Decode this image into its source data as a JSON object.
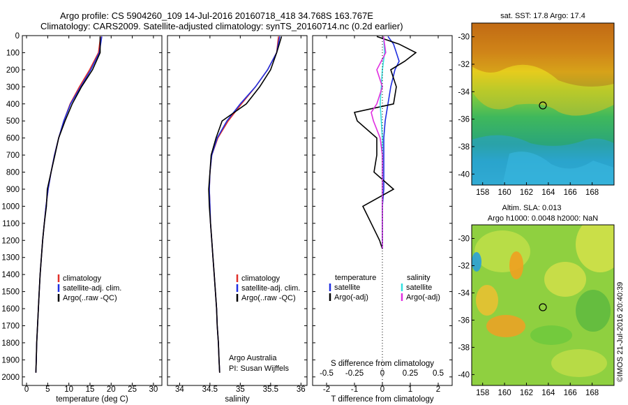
{
  "title_line1": "Argo profile: CS 5904260_109 14-Jul-2016 20160718_418 34.768S 163.767E",
  "title_line2": "Climatology: CARS2009. Satellite-adjusted climatology: synTS_20160714.nc (0.2d earlier)",
  "sst_title": "sat. SST: 17.8 Argo: 17.4",
  "sla_title1": "Altim. SLA: 0.013",
  "sla_title2": "Argo h1000: 0.0048 h2000: NaN",
  "credit": "©IMOS 21-Jul-2016 20:40:39",
  "annotation_argo": "Argo Australia",
  "annotation_pi": "PI: Susan Wijffels",
  "map_lat_ticks": [
    "-30",
    "-32",
    "-34",
    "-36",
    "-38",
    "-40"
  ],
  "map_lon_ticks": [
    "158",
    "160",
    "162",
    "164",
    "166",
    "168"
  ],
  "colors": {
    "climatology": "#e0302a",
    "satellite": "#1f2fe0",
    "argo": "#000000",
    "sat_salinity": "#35e0e0",
    "argo_salinity": "#e030e0"
  },
  "chart_data": [
    {
      "type": "line",
      "xlabel": "temperature (deg C)",
      "ylim": [
        2050,
        0
      ],
      "xlim": [
        -1,
        32
      ],
      "x_ticks": [
        "0",
        "5",
        "10",
        "15",
        "20",
        "25",
        "30"
      ],
      "y_ticks": [
        "0",
        "100",
        "200",
        "300",
        "400",
        "500",
        "600",
        "700",
        "800",
        "900",
        "1000",
        "1100",
        "1200",
        "1300",
        "1400",
        "1500",
        "1600",
        "1700",
        "1800",
        "1900",
        "2000"
      ],
      "legend": [
        "climatology",
        "satellite-adj. clim.",
        "Argo(..raw -QC)"
      ],
      "series": [
        {
          "name": "climatology",
          "depth": [
            5,
            100,
            200,
            300,
            400,
            500,
            600,
            700,
            800,
            900,
            1000,
            1100,
            1200,
            1300,
            1400,
            1500,
            1600,
            1700,
            1800,
            1900,
            1975
          ],
          "values": [
            17.5,
            17.0,
            14.9,
            12.5,
            10.3,
            8.8,
            7.6,
            6.6,
            5.8,
            5.1,
            4.6,
            4.2,
            3.8,
            3.5,
            3.2,
            3.0,
            2.8,
            2.6,
            2.4,
            2.3,
            2.2
          ]
        },
        {
          "name": "satellite-adj. clim.",
          "depth": [
            5,
            100,
            200,
            300,
            400,
            500,
            600,
            700,
            800,
            900,
            1000,
            1100,
            1200,
            1300,
            1400,
            1500,
            1600,
            1700,
            1800,
            1900,
            1975
          ],
          "values": [
            17.8,
            17.2,
            15.2,
            12.8,
            10.4,
            8.8,
            7.6,
            6.6,
            5.8,
            5.1,
            4.6,
            4.2,
            3.8,
            3.5,
            3.2,
            3.0,
            2.8,
            2.6,
            2.4,
            2.3,
            2.2
          ]
        },
        {
          "name": "Argo(..raw -QC)",
          "depth": [
            5,
            100,
            200,
            300,
            400,
            500,
            600,
            700,
            800,
            900,
            1000,
            1100,
            1200,
            1300,
            1400,
            1500,
            1600,
            1700,
            1800,
            1900,
            1975
          ],
          "values": [
            17.4,
            17.4,
            15.6,
            13.0,
            10.8,
            9.1,
            7.6,
            6.7,
            5.8,
            4.9,
            4.7,
            4.2,
            3.8,
            3.5,
            3.2,
            3.0,
            2.8,
            2.6,
            2.4,
            2.3,
            2.2
          ]
        }
      ]
    },
    {
      "type": "line",
      "xlabel": "salinity",
      "ylim": [
        2050,
        0
      ],
      "xlim": [
        33.8,
        36.1
      ],
      "x_ticks": [
        "34",
        "34.5",
        "35",
        "35.5",
        "36"
      ],
      "legend": [
        "climatology",
        "satellite-adj. clim.",
        "Argo(..raw -QC)"
      ],
      "series": [
        {
          "name": "climatology",
          "depth": [
            5,
            100,
            200,
            300,
            400,
            500,
            600,
            700,
            800,
            900,
            1000,
            1100,
            1200,
            1300,
            1400,
            1500,
            1600,
            1700,
            1800,
            1900,
            1975
          ],
          "values": [
            35.63,
            35.6,
            35.45,
            35.25,
            35.02,
            34.8,
            34.63,
            34.53,
            34.5,
            34.49,
            34.5,
            34.51,
            34.53,
            34.55,
            34.57,
            34.59,
            34.61,
            34.62,
            34.64,
            34.65,
            34.66
          ]
        },
        {
          "name": "satellite-adj. clim.",
          "depth": [
            5,
            100,
            200,
            300,
            400,
            500,
            600,
            700,
            800,
            900,
            1000,
            1100,
            1200,
            1300,
            1400,
            1500,
            1600,
            1700,
            1800,
            1900,
            1975
          ],
          "values": [
            35.65,
            35.6,
            35.45,
            35.25,
            35.0,
            34.78,
            34.62,
            34.53,
            34.5,
            34.49,
            34.5,
            34.51,
            34.53,
            34.55,
            34.57,
            34.59,
            34.61,
            34.62,
            34.64,
            34.65,
            34.66
          ]
        },
        {
          "name": "Argo(..raw -QC)",
          "depth": [
            5,
            100,
            200,
            300,
            400,
            500,
            600,
            700,
            800,
            900,
            1000,
            1100,
            1200,
            1300,
            1400,
            1500,
            1600,
            1700,
            1800,
            1900,
            1975
          ],
          "values": [
            35.68,
            35.6,
            35.5,
            35.32,
            35.1,
            34.7,
            34.6,
            34.52,
            34.5,
            34.48,
            34.49,
            34.51,
            34.53,
            34.55,
            34.57,
            34.59,
            34.61,
            34.62,
            34.64,
            34.65,
            34.66
          ]
        }
      ]
    },
    {
      "type": "line",
      "xlabel": "T difference from climatology",
      "xlabel_top": "S difference from climatology",
      "ylim": [
        2050,
        0
      ],
      "xlim": [
        -2.5,
        2.5
      ],
      "x_ticks": [
        "-2",
        "-1",
        "0",
        "1",
        "2"
      ],
      "x_ticks_top": [
        "-0.5",
        "-0.25",
        "0",
        "0.25",
        "0.5"
      ],
      "legend_headers": [
        "temperature",
        "salinity"
      ],
      "legend": [
        "satellite",
        "Argo(-adj)",
        "satellite",
        "Argo(-adj)"
      ],
      "series": [
        {
          "name": "temperature satellite",
          "depth": [
            5,
            50,
            100,
            150,
            200,
            300,
            400,
            500,
            600,
            700,
            800,
            900,
            1000,
            1100,
            1200,
            1250
          ],
          "values": [
            0.2,
            0.4,
            0.5,
            0.6,
            0.45,
            0.3,
            0.2,
            0.1,
            0.05,
            0.05,
            0.05,
            0.05,
            0.0,
            0.0,
            0.0,
            0.0
          ]
        },
        {
          "name": "temperature Argo(-adj)",
          "depth": [
            5,
            50,
            100,
            150,
            200,
            300,
            400,
            450,
            500,
            600,
            700,
            800,
            900,
            1000,
            1100,
            1200,
            1250
          ],
          "values": [
            -0.2,
            0.6,
            1.2,
            0.8,
            0.3,
            0.5,
            0.4,
            -1.0,
            -0.9,
            -0.2,
            -0.2,
            -0.3,
            0.4,
            -0.7,
            -0.4,
            -0.1,
            0.0
          ]
        },
        {
          "name": "salinity satellite",
          "depth": [
            5,
            100,
            200,
            300,
            400,
            500,
            600,
            700,
            800,
            900,
            1000,
            1100,
            1200,
            1250
          ],
          "values": [
            0.01,
            0.02,
            0.0,
            -0.01,
            -0.02,
            -0.01,
            0.0,
            0.0,
            0.0,
            0.0,
            0.0,
            0.0,
            0.0,
            0.0
          ]
        },
        {
          "name": "salinity Argo(-adj)",
          "depth": [
            5,
            100,
            200,
            300,
            400,
            450,
            500,
            600,
            700,
            800,
            900,
            1000,
            1100,
            1200,
            1250
          ],
          "values": [
            0.01,
            0.03,
            -0.05,
            0.0,
            -0.05,
            -0.1,
            -0.08,
            -0.02,
            0.0,
            0.0,
            0.0,
            0.0,
            0.0,
            0.0,
            0.0
          ]
        }
      ]
    },
    {
      "type": "heatmap",
      "title": "sat. SST: 17.8 Argo: 17.4",
      "xlim": [
        157,
        170
      ],
      "ylim": [
        -40.8,
        -29
      ]
    },
    {
      "type": "heatmap",
      "title": "Altim. SLA: 0.013",
      "xlim": [
        157,
        170
      ],
      "ylim": [
        -40.8,
        -29
      ]
    }
  ]
}
